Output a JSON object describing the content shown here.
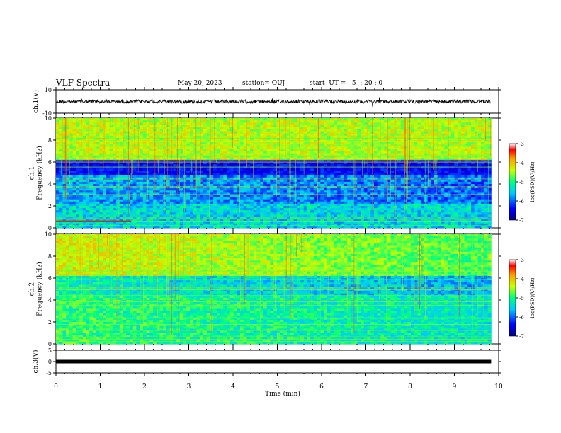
{
  "header": {
    "title": "VLF Spectra",
    "date": "May 20, 2023",
    "station": "station= OUJ",
    "start_ut": "start  UT =   5  : 20 : 0"
  },
  "chart_data": [
    {
      "type": "line",
      "panel": "ch1-waveform",
      "ylabel": "ch.1(V)",
      "ylim": [
        -10,
        10
      ],
      "y_ticks": [
        "10",
        "-10"
      ],
      "x": [
        0,
        1,
        2,
        3,
        4,
        5,
        6,
        7,
        8,
        9,
        9.83
      ],
      "series": [
        {
          "values": [
            0,
            0,
            0,
            0,
            0,
            0,
            0,
            0,
            0,
            0,
            0
          ],
          "color": "#000000"
        }
      ]
    },
    {
      "type": "heatmap",
      "panel": "ch1-spectrogram",
      "ylabel": "ch.1\nFrequency (kHz)",
      "ylim": [
        0,
        10
      ],
      "y_ticks": [
        "0",
        "2",
        "4",
        "6",
        "8",
        "10"
      ],
      "xlim": [
        0,
        10
      ],
      "data_extent_min": 9.83,
      "colorbar": {
        "label": "log(PSD)(V²/Hz)",
        "range": [
          -7,
          -3
        ],
        "ticks": [
          "-3",
          "-4",
          "-5",
          "-6",
          "-7"
        ]
      }
    },
    {
      "type": "heatmap",
      "panel": "ch2-spectrogram",
      "ylabel": "ch.2\nFrequency (kHz)",
      "ylim": [
        0,
        10
      ],
      "y_ticks": [
        "0",
        "2",
        "4",
        "6",
        "8",
        "10"
      ],
      "xlim": [
        0,
        10
      ],
      "data_extent_min": 9.83,
      "colorbar": {
        "label": "log(PSD)(V²/Hz)",
        "range": [
          -7,
          -3
        ],
        "ticks": [
          "-3",
          "-4",
          "-5",
          "-6",
          "-7"
        ]
      }
    },
    {
      "type": "line",
      "panel": "ch3-waveform",
      "ylabel": "ch.3(V)",
      "ylim": [
        -5,
        5
      ],
      "y_ticks": [
        "5",
        "0",
        "-5"
      ],
      "x": [
        0,
        9.83
      ],
      "series": [
        {
          "values": [
            0,
            0
          ],
          "color": "#000000"
        }
      ],
      "xlabel": "Time (min)",
      "x_ticks": [
        "0",
        "1",
        "2",
        "3",
        "4",
        "5",
        "6",
        "7",
        "8",
        "9",
        "10"
      ]
    }
  ]
}
